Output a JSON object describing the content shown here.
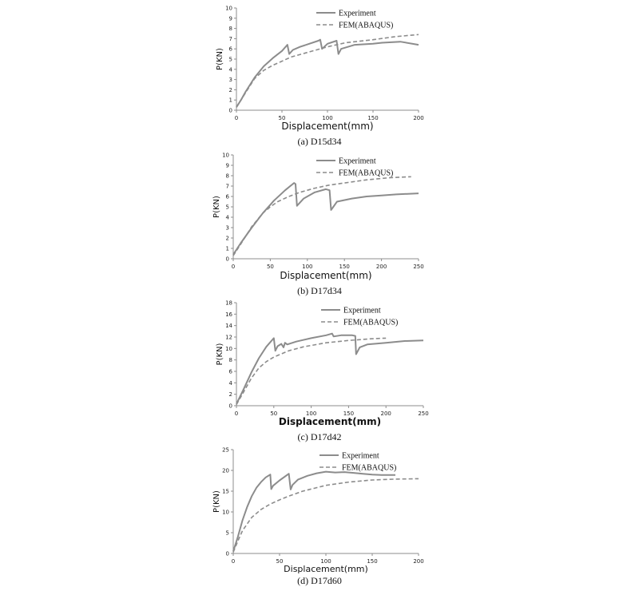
{
  "colors": {
    "series": "#8c8c8c",
    "axis": "#8c8c8c",
    "text": "#111111"
  },
  "chart_data": [
    {
      "type": "line",
      "caption": "(a)  D15d34",
      "xlabel": "Displacement(mm)",
      "ylabel": "P(KN)",
      "xlim": [
        0,
        200
      ],
      "ylim": [
        0,
        10
      ],
      "xticks": [
        0,
        50,
        100,
        150,
        200
      ],
      "yticks": [
        0,
        1,
        2,
        3,
        4,
        5,
        6,
        7,
        8,
        9,
        10
      ],
      "grid": false,
      "legend": "top-right",
      "series": [
        {
          "name": "Experiment",
          "style": "solid",
          "x": [
            0,
            5,
            10,
            20,
            30,
            40,
            50,
            56,
            58,
            62,
            70,
            80,
            90,
            92,
            94,
            100,
            110,
            112,
            115,
            130,
            150,
            160,
            180,
            200
          ],
          "y": [
            0.3,
            1.0,
            1.8,
            3.2,
            4.3,
            5.1,
            5.8,
            6.4,
            5.5,
            5.9,
            6.2,
            6.5,
            6.8,
            6.9,
            6.0,
            6.5,
            6.8,
            5.5,
            6.0,
            6.4,
            6.5,
            6.6,
            6.7,
            6.4
          ]
        },
        {
          "name": "FEM(ABAQUS)",
          "style": "dashed",
          "x": [
            0,
            10,
            20,
            30,
            40,
            50,
            60,
            80,
            100,
            120,
            150,
            175,
            200
          ],
          "y": [
            0.3,
            1.7,
            3.1,
            3.9,
            4.4,
            4.8,
            5.2,
            5.7,
            6.2,
            6.6,
            6.9,
            7.2,
            7.4
          ]
        }
      ]
    },
    {
      "type": "line",
      "caption": "(b)  D17d34",
      "xlabel": "Displacement(mm)",
      "ylabel": "P(KN)",
      "xlim": [
        0,
        250
      ],
      "ylim": [
        0,
        10
      ],
      "xticks": [
        0,
        50,
        100,
        150,
        200,
        250
      ],
      "yticks": [
        0,
        1,
        2,
        3,
        4,
        5,
        6,
        7,
        8,
        9,
        10
      ],
      "grid": false,
      "legend": "top-right",
      "series": [
        {
          "name": "Experiment",
          "style": "solid",
          "x": [
            0,
            10,
            25,
            40,
            55,
            70,
            82,
            84,
            86,
            95,
            110,
            125,
            130,
            132,
            135,
            140,
            160,
            180,
            200,
            220,
            250
          ],
          "y": [
            0.4,
            1.5,
            3.0,
            4.4,
            5.6,
            6.6,
            7.3,
            7.2,
            5.1,
            5.8,
            6.4,
            6.7,
            6.6,
            4.7,
            5.0,
            5.5,
            5.8,
            6.0,
            6.1,
            6.2,
            6.3
          ]
        },
        {
          "name": "FEM(ABAQUS)",
          "style": "dashed",
          "x": [
            0,
            10,
            25,
            40,
            50,
            60,
            75,
            90,
            110,
            130,
            150,
            180,
            210,
            240
          ],
          "y": [
            0.3,
            1.4,
            3.1,
            4.4,
            5.0,
            5.5,
            6.0,
            6.4,
            6.8,
            7.1,
            7.3,
            7.6,
            7.8,
            7.9
          ]
        }
      ]
    },
    {
      "type": "line",
      "caption": "(c)  D17d42",
      "xlabel": "Displacement(mm)",
      "ylabel": "P(KN)",
      "xlim": [
        0,
        250
      ],
      "ylim": [
        0,
        18
      ],
      "xticks": [
        0,
        50,
        100,
        150,
        200,
        250
      ],
      "yticks": [
        0,
        2,
        4,
        6,
        8,
        10,
        12,
        14,
        16,
        18
      ],
      "grid": false,
      "legend": "top-right",
      "series": [
        {
          "name": "Experiment",
          "style": "solid",
          "x": [
            0,
            10,
            20,
            30,
            40,
            50,
            52,
            55,
            60,
            63,
            65,
            68,
            80,
            100,
            120,
            128,
            130,
            140,
            155,
            159,
            160,
            165,
            175,
            200,
            225,
            250
          ],
          "y": [
            0.3,
            3.0,
            5.8,
            8.3,
            10.3,
            11.8,
            9.6,
            10.4,
            10.8,
            10.2,
            11.0,
            10.7,
            11.2,
            11.8,
            12.3,
            12.6,
            12.1,
            12.3,
            12.3,
            12.2,
            9.0,
            10.2,
            10.7,
            11.0,
            11.3,
            11.4
          ]
        },
        {
          "name": "FEM(ABAQUS)",
          "style": "dashed",
          "x": [
            0,
            10,
            20,
            30,
            40,
            50,
            70,
            90,
            120,
            150,
            180,
            200
          ],
          "y": [
            0.2,
            2.5,
            4.8,
            6.6,
            7.7,
            8.5,
            9.6,
            10.3,
            11.0,
            11.4,
            11.7,
            11.8
          ]
        }
      ]
    },
    {
      "type": "line",
      "caption": "(d)  D17d60",
      "xlabel": "Displacement(mm)",
      "ylabel": "P(KN)",
      "xlim": [
        0,
        200
      ],
      "ylim": [
        0,
        25
      ],
      "xticks": [
        0,
        50,
        100,
        150,
        200
      ],
      "yticks": [
        0,
        5,
        10,
        15,
        20,
        25
      ],
      "grid": false,
      "legend": "top-right",
      "series": [
        {
          "name": "Experiment",
          "style": "solid",
          "x": [
            0,
            5,
            10,
            15,
            20,
            25,
            30,
            35,
            40,
            41,
            43,
            50,
            60,
            62,
            64,
            70,
            80,
            90,
            100,
            110,
            120,
            130,
            140,
            150,
            160,
            175
          ],
          "y": [
            0.5,
            4.0,
            8.0,
            11.2,
            13.8,
            15.8,
            17.2,
            18.3,
            19.0,
            15.5,
            16.3,
            17.6,
            19.2,
            15.4,
            16.5,
            17.8,
            18.7,
            19.3,
            19.7,
            19.5,
            19.6,
            19.4,
            19.2,
            19.0,
            18.9,
            18.9
          ]
        },
        {
          "name": "FEM(ABAQUS)",
          "style": "dashed",
          "x": [
            0,
            5,
            10,
            20,
            30,
            40,
            50,
            60,
            75,
            100,
            125,
            150,
            175,
            200
          ],
          "y": [
            0.3,
            3.0,
            5.5,
            8.7,
            10.6,
            11.9,
            12.9,
            13.8,
            15.0,
            16.4,
            17.2,
            17.7,
            17.9,
            18.0
          ]
        }
      ]
    }
  ]
}
